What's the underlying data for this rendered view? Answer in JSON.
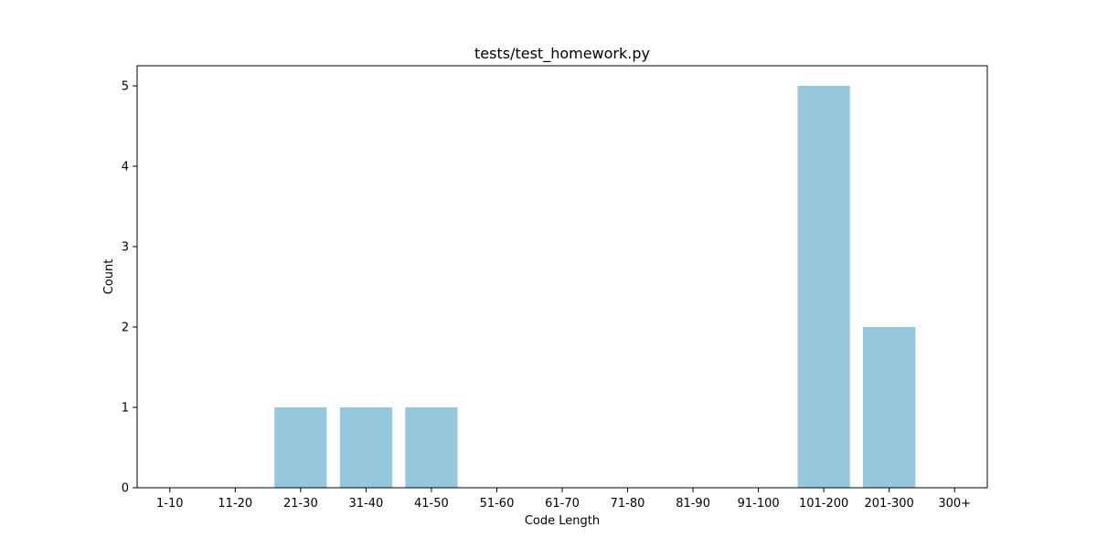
{
  "chart_data": {
    "type": "bar",
    "title": "tests/test_homework.py",
    "xlabel": "Code Length",
    "ylabel": "Count",
    "categories": [
      "1-10",
      "11-20",
      "21-30",
      "31-40",
      "41-50",
      "51-60",
      "61-70",
      "71-80",
      "81-90",
      "91-100",
      "101-200",
      "201-300",
      "300+"
    ],
    "values": [
      0,
      0,
      1,
      1,
      1,
      0,
      0,
      0,
      0,
      0,
      5,
      2,
      0
    ],
    "ylim": [
      0,
      5.25
    ],
    "yticks": [
      0,
      1,
      2,
      3,
      4,
      5
    ],
    "bar_color": "#95c8dc",
    "grid": false,
    "legend": "none"
  }
}
